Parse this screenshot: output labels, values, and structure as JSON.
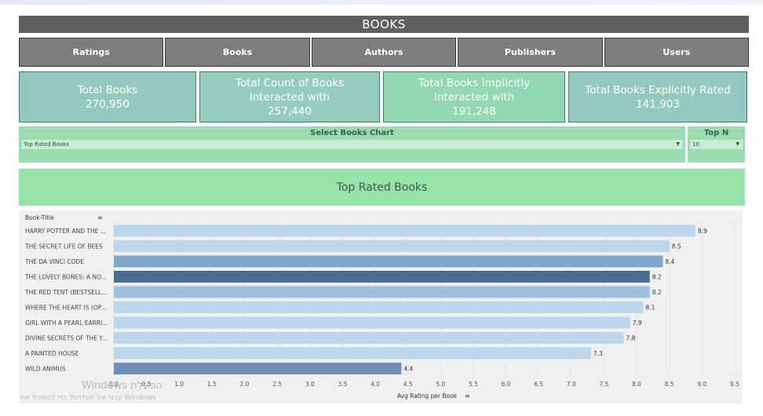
{
  "dashboard": {
    "title": "BOOKS",
    "nav": [
      "Ratings",
      "Books",
      "Authors",
      "Publishers",
      "Users"
    ]
  },
  "kpis": [
    {
      "label": "Total Books",
      "value": "270,950",
      "color": "#94c9bf"
    },
    {
      "label": "Total Count of  Books Interacted with",
      "value": "257,440",
      "color": "#96ccc0"
    },
    {
      "label": "Total Books Implicitly Interacted with",
      "value": "191,248",
      "color": "#92d8b0"
    },
    {
      "label": "Total Books Explicitly Rated",
      "value": "141,903",
      "color": "#94c9bf"
    }
  ],
  "selector": {
    "label": "Select Books Chart",
    "value": "Top Rated Books"
  },
  "topn": {
    "label": "Top N",
    "value": "10"
  },
  "chart_title": "Top Rated Books",
  "chart_data": {
    "type": "bar",
    "orientation": "horizontal",
    "ylabel": "Book-Title",
    "xlabel": "Avg Rating per Book",
    "categories": [
      "HARRY POTTER AND THE ...",
      "THE SECRET LIFE OF BEES",
      "THE DA VINCI CODE",
      "THE LOVELY BONES: A NO...",
      "THE RED TENT (BESTSELL...",
      "WHERE THE HEART IS (OP...",
      "GIRL WITH A PEARL EARRI...",
      "DIVINE SECRETS OF THE Y...",
      "A PAINTED HOUSE",
      "WILD ANIMUS"
    ],
    "values": [
      8.9,
      8.5,
      8.4,
      8.2,
      8.2,
      8.1,
      7.9,
      7.8,
      7.3,
      4.4
    ],
    "bar_colors": [
      "#bcd6ec",
      "#bcd6ec",
      "#7fa6cb",
      "#4a6e93",
      "#9dbfe0",
      "#bcd6ec",
      "#bcd6ec",
      "#bcd6ec",
      "#bcd6ec",
      "#6e90b6"
    ],
    "xlim": [
      0,
      9.5
    ],
    "xticks": [
      "0.0",
      "0.5",
      "1.0",
      "1.5",
      "2.0",
      "2.5",
      "3.0",
      "3.5",
      "4.0",
      "4.5",
      "5.0",
      "5.5",
      "6.0",
      "6.5",
      "7.0",
      "7.5",
      "8.0",
      "8.5",
      "9.0",
      "9.5"
    ],
    "grid": true
  },
  "watermark": {
    "line1": "Windows הפעלת",
    "line2": "עבור אל 'הגדרות' כדי להפעיל את Windows"
  },
  "icons": {
    "sort": "sort-icon",
    "dropdown": "chevron-down-icon"
  }
}
